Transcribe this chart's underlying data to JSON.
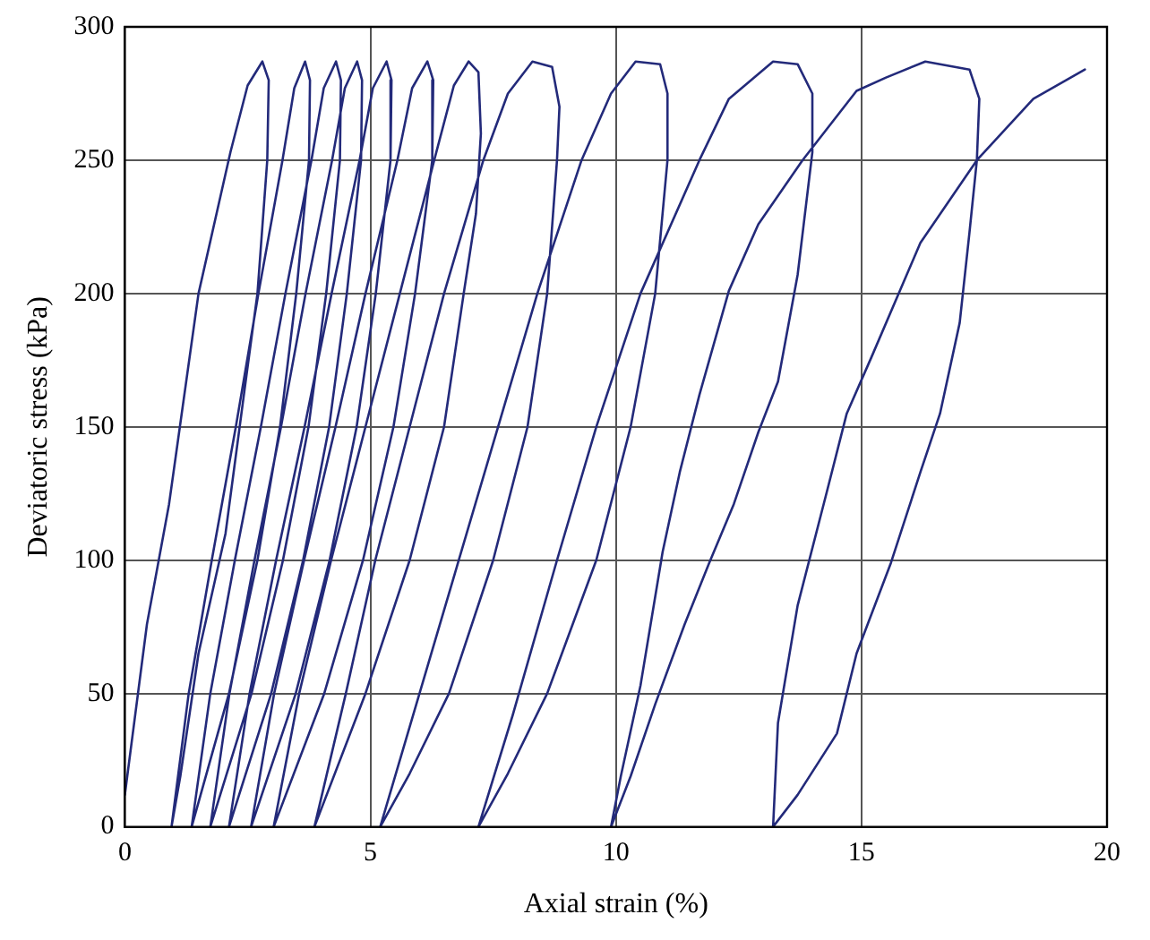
{
  "chart_data": {
    "type": "line",
    "xlabel": "Axial strain (%)",
    "ylabel": "Deviatoric stress (kPa)",
    "x": [
      0,
      0.45,
      0.9,
      1.5,
      2.15,
      2.5,
      2.8,
      2.93,
      2.9,
      2.7,
      2.46,
      2.05,
      1.5,
      1.13,
      0.95,
      1.3,
      1.77,
      2.26,
      2.72,
      3.21,
      3.45,
      3.67,
      3.77,
      3.75,
      3.49,
      3.16,
      2.7,
      2.12,
      1.36,
      1.74,
      2.24,
      2.77,
      3.27,
      3.8,
      4.05,
      4.3,
      4.4,
      4.38,
      4.1,
      3.74,
      3.22,
      2.58,
      1.74,
      2.13,
      2.64,
      3.18,
      3.68,
      4.22,
      4.48,
      4.73,
      4.83,
      4.81,
      4.52,
      4.16,
      3.63,
      2.98,
      2.12,
      2.54,
      3.08,
      3.66,
      4.21,
      4.78,
      5.05,
      5.33,
      5.43,
      5.41,
      5.11,
      4.72,
      4.17,
      3.48,
      2.57,
      3.04,
      3.65,
      4.29,
      4.9,
      5.55,
      5.85,
      6.16,
      6.28,
      6.26,
      5.91,
      5.47,
      4.85,
      4.06,
      3.03,
      3.55,
      4.2,
      4.9,
      5.6,
      6.3,
      6.7,
      7.0,
      7.2,
      7.25,
      7.15,
      6.9,
      6.5,
      5.8,
      4.9,
      3.86,
      4.5,
      5.1,
      5.8,
      6.5,
      7.3,
      7.8,
      8.3,
      8.7,
      8.85,
      8.8,
      8.6,
      8.2,
      7.5,
      6.6,
      5.8,
      5.2,
      6.0,
      6.8,
      7.6,
      8.4,
      9.3,
      9.9,
      10.4,
      10.9,
      11.05,
      11.05,
      10.8,
      10.3,
      9.6,
      8.6,
      7.8,
      7.2,
      7.9,
      8.8,
      9.6,
      10.5,
      11.7,
      12.3,
      13.2,
      13.7,
      14.0,
      14.0,
      13.7,
      13.3,
      12.9,
      12.4,
      11.9,
      11.4,
      10.8,
      10.3,
      9.9,
      10.1,
      10.5,
      10.95,
      11.3,
      11.7,
      12.3,
      12.9,
      13.8,
      14.9,
      15.5,
      16.3,
      17.2,
      17.4,
      17.35,
      17.2,
      17.0,
      16.6,
      16.2,
      15.6,
      14.9,
      14.5,
      13.7,
      13.2,
      13.3,
      13.7,
      14.3,
      14.7,
      15.2,
      16.2,
      17.35,
      18.5,
      19.55
    ],
    "values": [
      12,
      76,
      121,
      200,
      253,
      278,
      287,
      280,
      250,
      200,
      167,
      110,
      65,
      19,
      0,
      50,
      100,
      150,
      200,
      250,
      277,
      287,
      280,
      250,
      200,
      150,
      100,
      50,
      0,
      50,
      100,
      150,
      200,
      250,
      277,
      287,
      280,
      250,
      200,
      150,
      100,
      50,
      0,
      50,
      100,
      150,
      200,
      250,
      277,
      287,
      280,
      250,
      200,
      150,
      100,
      50,
      0,
      50,
      100,
      150,
      200,
      250,
      277,
      287,
      280,
      250,
      200,
      150,
      100,
      50,
      0,
      50,
      100,
      150,
      200,
      250,
      277,
      287,
      280,
      250,
      200,
      150,
      100,
      50,
      0,
      50,
      100,
      150,
      200,
      250,
      278,
      287,
      283,
      260,
      230,
      200,
      150,
      100,
      50,
      0,
      50,
      100,
      150,
      200,
      250,
      275,
      287,
      285,
      270,
      250,
      200,
      150,
      100,
      50,
      20,
      0,
      50,
      100,
      150,
      200,
      250,
      275,
      287,
      286,
      275,
      250,
      200,
      150,
      100,
      50,
      20,
      0,
      42,
      100,
      150,
      200,
      250,
      273,
      287,
      286,
      275,
      253,
      207,
      167,
      148,
      121,
      99,
      76,
      46,
      19,
      0,
      19,
      53,
      103,
      133,
      162,
      201,
      226,
      250,
      276,
      281,
      287,
      284,
      273,
      250,
      223,
      189,
      155,
      133,
      99,
      65,
      35,
      12,
      0,
      39,
      83,
      126,
      155,
      176,
      219,
      250,
      273,
      284
    ],
    "color": "#232a7a",
    "marker": "none",
    "line_style": "solid",
    "xlim": [
      0,
      20
    ],
    "xticks": [
      0,
      5,
      10,
      15,
      20
    ],
    "ylim": [
      0,
      300
    ],
    "yticks": [
      0,
      50,
      100,
      150,
      200,
      250,
      300
    ],
    "grid": true
  }
}
